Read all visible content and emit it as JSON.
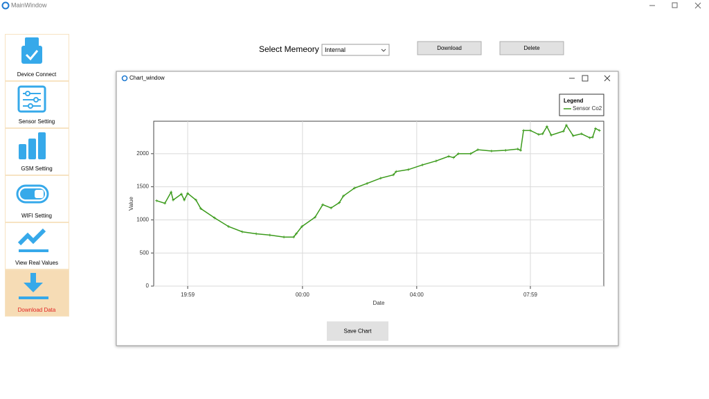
{
  "window": {
    "title": "MainWindow"
  },
  "sidebar": {
    "items": [
      {
        "label": "Device Connect"
      },
      {
        "label": "Sensor Setting"
      },
      {
        "label": "GSM Setting"
      },
      {
        "label": "WIFI Setting"
      },
      {
        "label": "View Real Values"
      },
      {
        "label": "Download Data"
      }
    ]
  },
  "toolbar": {
    "memory_label": "Select Memeory",
    "memory_select": "Internal",
    "buttons": [
      "Download",
      "Delete"
    ]
  },
  "chart_window": {
    "title": "Chart_window",
    "save_button": "Save Chart"
  },
  "chart_data": {
    "type": "line",
    "x_label": "Date",
    "y_label": "Value",
    "legend_title": "Legend",
    "legend": "upper right",
    "grid": true,
    "x": [
      18.89,
      19.18,
      19.4,
      19.47,
      19.76,
      19.86,
      19.98,
      20.27,
      20.44,
      20.92,
      21.41,
      21.89,
      22.38,
      22.86,
      23.35,
      23.69,
      23.78,
      23.98,
      24.44,
      24.71,
      25.0,
      25.29,
      25.43,
      25.82,
      26.26,
      26.74,
      27.18,
      27.28,
      27.71,
      28.2,
      28.68,
      29.12,
      29.29,
      29.46,
      29.89,
      30.14,
      30.62,
      31.11,
      31.54,
      31.64,
      31.74,
      31.98,
      32.27,
      32.41,
      32.56,
      32.71,
      33.14,
      33.24,
      33.48,
      33.77,
      34.06,
      34.16,
      34.26,
      34.4
    ],
    "series": [
      {
        "name": "Sensor Co2",
        "color": "#3a9a1a",
        "values": [
          1290,
          1250,
          1420,
          1300,
          1390,
          1300,
          1400,
          1300,
          1170,
          1030,
          900,
          820,
          790,
          770,
          740,
          740,
          790,
          900,
          1040,
          1230,
          1180,
          1260,
          1360,
          1480,
          1550,
          1630,
          1680,
          1730,
          1760,
          1830,
          1890,
          1960,
          1940,
          2000,
          2000,
          2060,
          2040,
          2050,
          2070,
          2050,
          2350,
          2350,
          2290,
          2300,
          2410,
          2280,
          2340,
          2430,
          2270,
          2300,
          2240,
          2250,
          2380,
          2350
        ]
      }
    ],
    "xlim": [
      18.79,
      34.55
    ],
    "xticks": [
      {
        "value": 19.98,
        "label": "19:59"
      },
      {
        "value": 24,
        "label": "00:00"
      },
      {
        "value": 28,
        "label": "04:00"
      },
      {
        "value": 31.98,
        "label": "07:59"
      }
    ],
    "ylim": [
      0,
      2490
    ],
    "yticks": [
      0,
      500,
      1000,
      1500,
      2000
    ]
  }
}
